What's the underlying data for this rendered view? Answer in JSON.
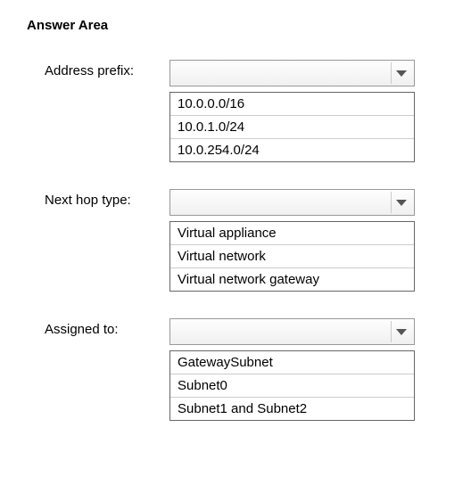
{
  "title": "Answer Area",
  "fields": [
    {
      "label": "Address prefix:",
      "options": [
        "10.0.0.0/16",
        "10.0.1.0/24",
        "10.0.254.0/24"
      ]
    },
    {
      "label": "Next hop type:",
      "options": [
        "Virtual appliance",
        "Virtual network",
        "Virtual network gateway"
      ]
    },
    {
      "label": "Assigned to:",
      "options": [
        "GatewaySubnet",
        "Subnet0",
        "Subnet1 and Subnet2"
      ]
    }
  ]
}
